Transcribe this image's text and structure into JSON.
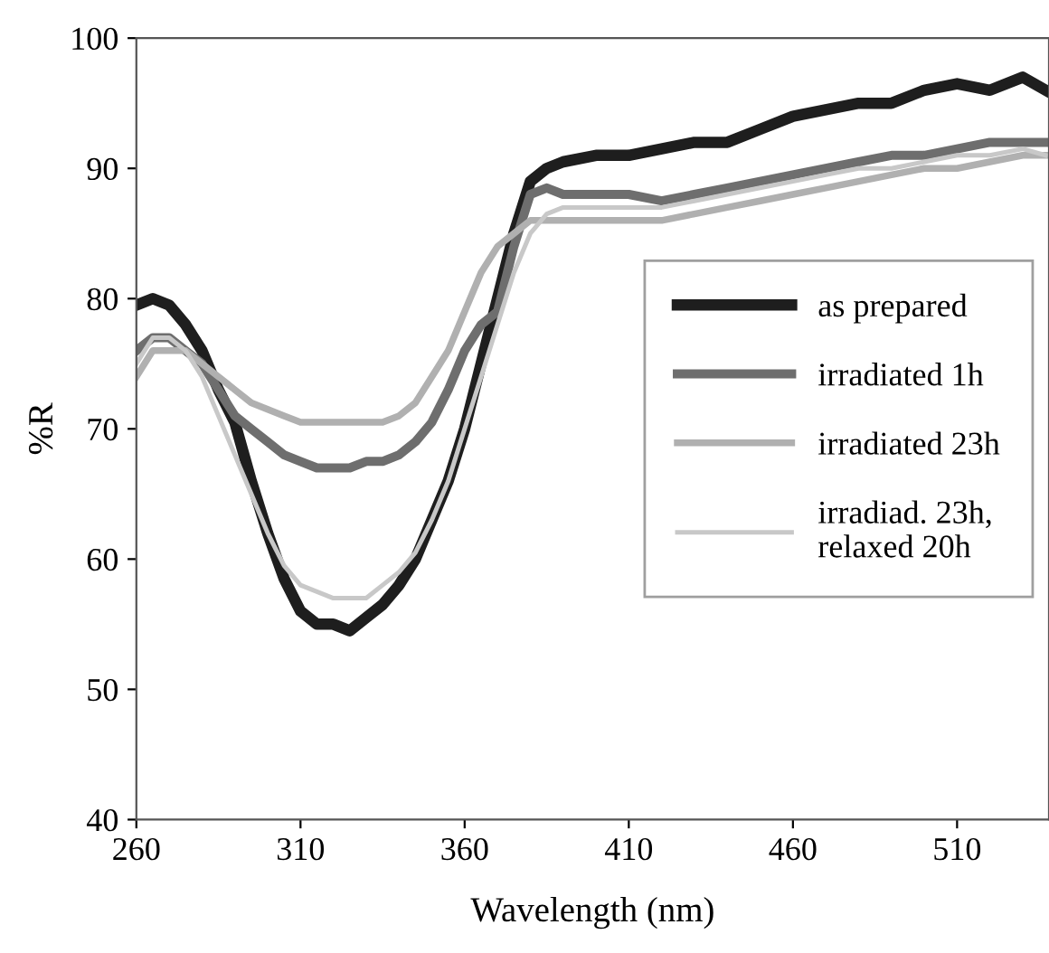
{
  "chart_data": {
    "type": "line",
    "xlabel": "Wavelength (nm)",
    "ylabel": "%R",
    "xlim": [
      260,
      538
    ],
    "ylim": [
      40,
      100
    ],
    "xticks": [
      260,
      310,
      360,
      410,
      460,
      510
    ],
    "yticks": [
      40,
      50,
      60,
      70,
      80,
      90,
      100
    ],
    "grid": false,
    "legend": "right",
    "marker": "none",
    "line_style": "solid",
    "series": [
      {
        "name": "as prepared",
        "color": "#1e1e1e",
        "x": [
          260,
          265,
          270,
          275,
          280,
          285,
          290,
          295,
          300,
          305,
          310,
          315,
          320,
          325,
          330,
          335,
          340,
          345,
          350,
          355,
          360,
          365,
          370,
          375,
          380,
          385,
          390,
          400,
          410,
          420,
          430,
          440,
          450,
          460,
          470,
          480,
          490,
          500,
          510,
          520,
          530,
          537
        ],
        "values": [
          79.5,
          80,
          79.5,
          78,
          76,
          73,
          70.5,
          66,
          62,
          58.5,
          56,
          55,
          55,
          54.5,
          55.5,
          56.5,
          58,
          60,
          63,
          66,
          70,
          75,
          80,
          85,
          89,
          90,
          90.5,
          91,
          91,
          91.5,
          92,
          92,
          93,
          94,
          94.5,
          95,
          95,
          96,
          96.5,
          96,
          97,
          96
        ]
      },
      {
        "name": "irradiated 1h",
        "color": "#6e6e6e",
        "x": [
          260,
          265,
          270,
          275,
          280,
          285,
          290,
          295,
          300,
          305,
          310,
          315,
          320,
          325,
          330,
          335,
          340,
          345,
          350,
          355,
          360,
          365,
          370,
          375,
          380,
          385,
          390,
          400,
          410,
          420,
          430,
          440,
          450,
          460,
          470,
          480,
          490,
          500,
          510,
          520,
          530,
          537
        ],
        "values": [
          76,
          77,
          77,
          76,
          75,
          73,
          71,
          70,
          69,
          68,
          67.5,
          67,
          67,
          67,
          67.5,
          67.5,
          68,
          69,
          70.5,
          73,
          76,
          78,
          79,
          84,
          88,
          88.5,
          88,
          88,
          88,
          87.5,
          88,
          88.5,
          89,
          89.5,
          90,
          90.5,
          91,
          91,
          91.5,
          92,
          92,
          92
        ]
      },
      {
        "name": "irradiated 23h",
        "color": "#b0b0b0",
        "x": [
          260,
          265,
          270,
          275,
          280,
          285,
          290,
          295,
          300,
          305,
          310,
          315,
          320,
          325,
          330,
          335,
          340,
          345,
          350,
          355,
          360,
          365,
          370,
          375,
          380,
          385,
          390,
          400,
          410,
          420,
          430,
          440,
          450,
          460,
          470,
          480,
          490,
          500,
          510,
          520,
          530,
          537
        ],
        "values": [
          74,
          76,
          76,
          76,
          75,
          74,
          73,
          72,
          71.5,
          71,
          70.5,
          70.5,
          70.5,
          70.5,
          70.5,
          70.5,
          71,
          72,
          74,
          76,
          79,
          82,
          84,
          85,
          86,
          86,
          86,
          86,
          86,
          86,
          86.5,
          87,
          87.5,
          88,
          88.5,
          89,
          89.5,
          90,
          90,
          90.5,
          91,
          91
        ]
      },
      {
        "name": "irradiad. 23h,\nrelaxed 20h",
        "color": "#c8c8c8",
        "x": [
          260,
          265,
          270,
          275,
          280,
          285,
          290,
          295,
          300,
          305,
          310,
          315,
          320,
          325,
          330,
          335,
          340,
          345,
          350,
          355,
          360,
          365,
          370,
          375,
          380,
          385,
          390,
          400,
          410,
          420,
          430,
          440,
          450,
          460,
          470,
          480,
          490,
          500,
          510,
          520,
          530,
          537
        ],
        "values": [
          75,
          77,
          77,
          76,
          74,
          71,
          68,
          65,
          62,
          59.5,
          58,
          57.5,
          57,
          57,
          57,
          58,
          59,
          60.5,
          63,
          66,
          70,
          74,
          78,
          82,
          85,
          86.5,
          87,
          87,
          87,
          87,
          87.5,
          88,
          88.5,
          89,
          89.5,
          90,
          90,
          90.5,
          91,
          91,
          91.5,
          91
        ]
      }
    ]
  }
}
